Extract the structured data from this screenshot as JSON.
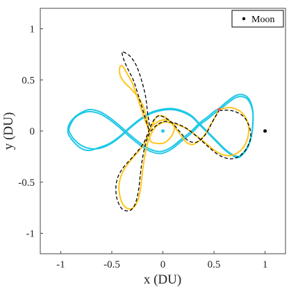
{
  "chart_data": {
    "type": "line",
    "title": "",
    "xlabel": "x (DU)",
    "ylabel": "y (DU)",
    "xlim": [
      -1.2,
      1.2
    ],
    "ylim": [
      -1.2,
      1.2
    ],
    "xticks": [
      -1,
      -0.5,
      0,
      0.5,
      1
    ],
    "xtick_labels": [
      "-1",
      "-0.5",
      "0",
      "0.5",
      "1"
    ],
    "yticks": [
      -1,
      -0.5,
      0,
      0.5,
      1
    ],
    "ytick_labels": [
      "-1",
      "-0.5",
      "0",
      "0.5",
      "1"
    ],
    "grid": false,
    "legend": {
      "placement": "top-right",
      "entries": [
        {
          "label": "Moon",
          "marker": "dot",
          "color": "#000000"
        }
      ]
    },
    "series": [
      {
        "style": "solid",
        "color": "#1ec8e6",
        "x": [
          0.55,
          0.63,
          0.72,
          0.8,
          0.85,
          0.88,
          0.88,
          0.86,
          0.82,
          0.78,
          0.74,
          0.68,
          0.6,
          0.52,
          0.44,
          0.36,
          0.28,
          0.18,
          0.08,
          -0.02,
          -0.12,
          -0.22,
          -0.32,
          -0.42,
          -0.52,
          -0.62,
          -0.72,
          -0.8,
          -0.87,
          -0.91,
          -0.92,
          -0.91,
          -0.87,
          -0.8,
          -0.72,
          -0.62,
          -0.52,
          -0.42,
          -0.32,
          -0.22,
          -0.12,
          -0.02,
          0.08,
          0.18,
          0.28,
          0.36,
          0.44,
          0.5,
          0.55
        ],
        "y": [
          0.2,
          0.27,
          0.33,
          0.33,
          0.28,
          0.18,
          0.05,
          -0.08,
          -0.18,
          -0.23,
          -0.26,
          -0.24,
          -0.18,
          -0.1,
          -0.02,
          0.06,
          0.14,
          0.19,
          0.21,
          0.2,
          0.17,
          0.11,
          0.03,
          -0.06,
          -0.13,
          -0.17,
          -0.17,
          -0.14,
          -0.08,
          -0.02,
          0.01,
          0.05,
          0.12,
          0.17,
          0.19,
          0.17,
          0.11,
          0.03,
          -0.06,
          -0.14,
          -0.2,
          -0.22,
          -0.18,
          -0.1,
          -0.02,
          0.06,
          0.12,
          0.17,
          0.2
        ]
      },
      {
        "style": "solid",
        "color": "#1ec8e6",
        "x": [
          0.55,
          0.63,
          0.72,
          0.8,
          0.85,
          0.88,
          0.88,
          0.86,
          0.82,
          0.78,
          0.74,
          0.68,
          0.6,
          0.52,
          0.44,
          0.36,
          0.28,
          0.18,
          0.08,
          -0.02,
          -0.12,
          -0.22,
          -0.32,
          -0.42,
          -0.52,
          -0.62,
          -0.72,
          -0.8,
          -0.87,
          -0.92,
          -0.93,
          -0.92,
          -0.87,
          -0.8,
          -0.72,
          -0.62,
          -0.52,
          -0.42,
          -0.32,
          -0.22,
          -0.12,
          -0.02,
          0.08,
          0.18,
          0.28,
          0.36,
          0.44,
          0.5,
          0.55
        ],
        "y": [
          0.22,
          0.29,
          0.35,
          0.35,
          0.3,
          0.2,
          0.07,
          -0.07,
          -0.17,
          -0.22,
          -0.25,
          -0.23,
          -0.17,
          -0.09,
          -0.01,
          0.07,
          0.15,
          0.2,
          0.22,
          0.21,
          0.18,
          0.12,
          0.04,
          -0.05,
          -0.12,
          -0.16,
          -0.19,
          -0.17,
          -0.11,
          -0.04,
          0.0,
          0.06,
          0.13,
          0.18,
          0.21,
          0.19,
          0.13,
          0.05,
          -0.04,
          -0.12,
          -0.18,
          -0.2,
          -0.16,
          -0.08,
          0.0,
          0.08,
          0.14,
          0.19,
          0.22
        ]
      },
      {
        "style": "solid",
        "color": "#ffc51a",
        "x": [
          0.55,
          0.66,
          0.76,
          0.82,
          0.84,
          0.82,
          0.77,
          0.7,
          0.62,
          0.52,
          0.42,
          0.32,
          0.22,
          0.12,
          0.06,
          0.02,
          -0.06,
          -0.11,
          -0.15,
          -0.18,
          -0.2,
          -0.22,
          -0.25,
          -0.29,
          -0.34,
          -0.39,
          -0.42,
          -0.43,
          -0.41,
          -0.37,
          -0.31,
          -0.24,
          -0.18,
          -0.14,
          -0.1,
          -0.06,
          -0.02,
          0.03,
          0.09,
          0.16,
          0.22,
          0.27,
          0.32,
          0.4,
          0.48,
          0.55
        ],
        "y": [
          0.21,
          0.23,
          0.19,
          0.11,
          0.01,
          -0.1,
          -0.18,
          -0.23,
          -0.24,
          -0.2,
          -0.12,
          -0.04,
          0.03,
          0.07,
          0.08,
          0.09,
          0.05,
          -0.02,
          -0.12,
          -0.26,
          -0.4,
          -0.57,
          -0.69,
          -0.75,
          -0.76,
          -0.72,
          -0.64,
          -0.54,
          -0.44,
          -0.36,
          -0.28,
          -0.2,
          -0.12,
          -0.03,
          0.07,
          0.14,
          0.15,
          0.13,
          0.07,
          -0.02,
          -0.1,
          -0.13,
          -0.12,
          -0.05,
          0.08,
          0.21
        ]
      },
      {
        "style": "solid",
        "color": "#ffc51a",
        "x": [
          -0.14,
          -0.18,
          -0.22,
          -0.26,
          -0.3,
          -0.35,
          -0.39,
          -0.42,
          -0.42,
          -0.38,
          -0.31,
          -0.25,
          -0.2,
          -0.17,
          -0.15,
          -0.14,
          -0.13,
          -0.11,
          -0.06,
          0.0,
          0.06,
          0.1,
          0.11,
          0.08,
          0.03,
          -0.03,
          -0.08,
          -0.11,
          -0.13,
          -0.14
        ],
        "y": [
          0.02,
          0.12,
          0.24,
          0.36,
          0.47,
          0.56,
          0.63,
          0.63,
          0.55,
          0.48,
          0.41,
          0.34,
          0.26,
          0.17,
          0.08,
          0.0,
          -0.07,
          -0.11,
          -0.12,
          -0.12,
          -0.08,
          -0.02,
          0.04,
          0.09,
          0.11,
          0.1,
          0.07,
          0.04,
          0.02,
          0.02
        ]
      },
      {
        "style": "dashed",
        "color": "#000000",
        "x": [
          0.55,
          0.67,
          0.78,
          0.84,
          0.86,
          0.84,
          0.79,
          0.72,
          0.64,
          0.54,
          0.44,
          0.34,
          0.24,
          0.14,
          0.06,
          0.0,
          -0.07,
          -0.13,
          -0.17,
          -0.2,
          -0.22,
          -0.24,
          -0.27,
          -0.31,
          -0.36,
          -0.41,
          -0.45,
          -0.46,
          -0.44,
          -0.39,
          -0.32,
          -0.25,
          -0.19,
          -0.15,
          -0.11,
          -0.07,
          -0.03,
          0.02,
          0.09,
          0.16,
          0.23,
          0.29,
          0.35,
          0.42,
          0.49,
          0.55
        ],
        "y": [
          0.2,
          0.2,
          0.15,
          0.06,
          -0.04,
          -0.13,
          -0.21,
          -0.26,
          -0.27,
          -0.23,
          -0.15,
          -0.06,
          0.02,
          0.07,
          0.09,
          0.09,
          0.05,
          -0.02,
          -0.13,
          -0.27,
          -0.42,
          -0.59,
          -0.71,
          -0.77,
          -0.78,
          -0.75,
          -0.66,
          -0.55,
          -0.45,
          -0.36,
          -0.28,
          -0.2,
          -0.12,
          -0.03,
          0.07,
          0.13,
          0.15,
          0.13,
          0.08,
          0.0,
          -0.08,
          -0.11,
          -0.1,
          -0.03,
          0.1,
          0.2
        ]
      },
      {
        "style": "dashed",
        "color": "#000000",
        "x": [
          -0.14,
          -0.17,
          -0.21,
          -0.25,
          -0.29,
          -0.34,
          -0.38,
          -0.4,
          -0.38,
          -0.32,
          -0.26,
          -0.21,
          -0.17,
          -0.15,
          -0.13
        ],
        "y": [
          0.02,
          0.12,
          0.25,
          0.38,
          0.5,
          0.6,
          0.69,
          0.77,
          0.77,
          0.73,
          0.64,
          0.5,
          0.34,
          0.18,
          0.05
        ]
      }
    ],
    "markers": [
      {
        "name": "moon-point",
        "x": 1.0,
        "y": 0.0,
        "color": "#000000"
      },
      {
        "name": "earth-point",
        "x": 0.0,
        "y": 0.0,
        "color": "#1ec8e6"
      },
      {
        "name": "start-marker",
        "x": 0.55,
        "y": 0.21,
        "color": "#e06060"
      }
    ]
  }
}
